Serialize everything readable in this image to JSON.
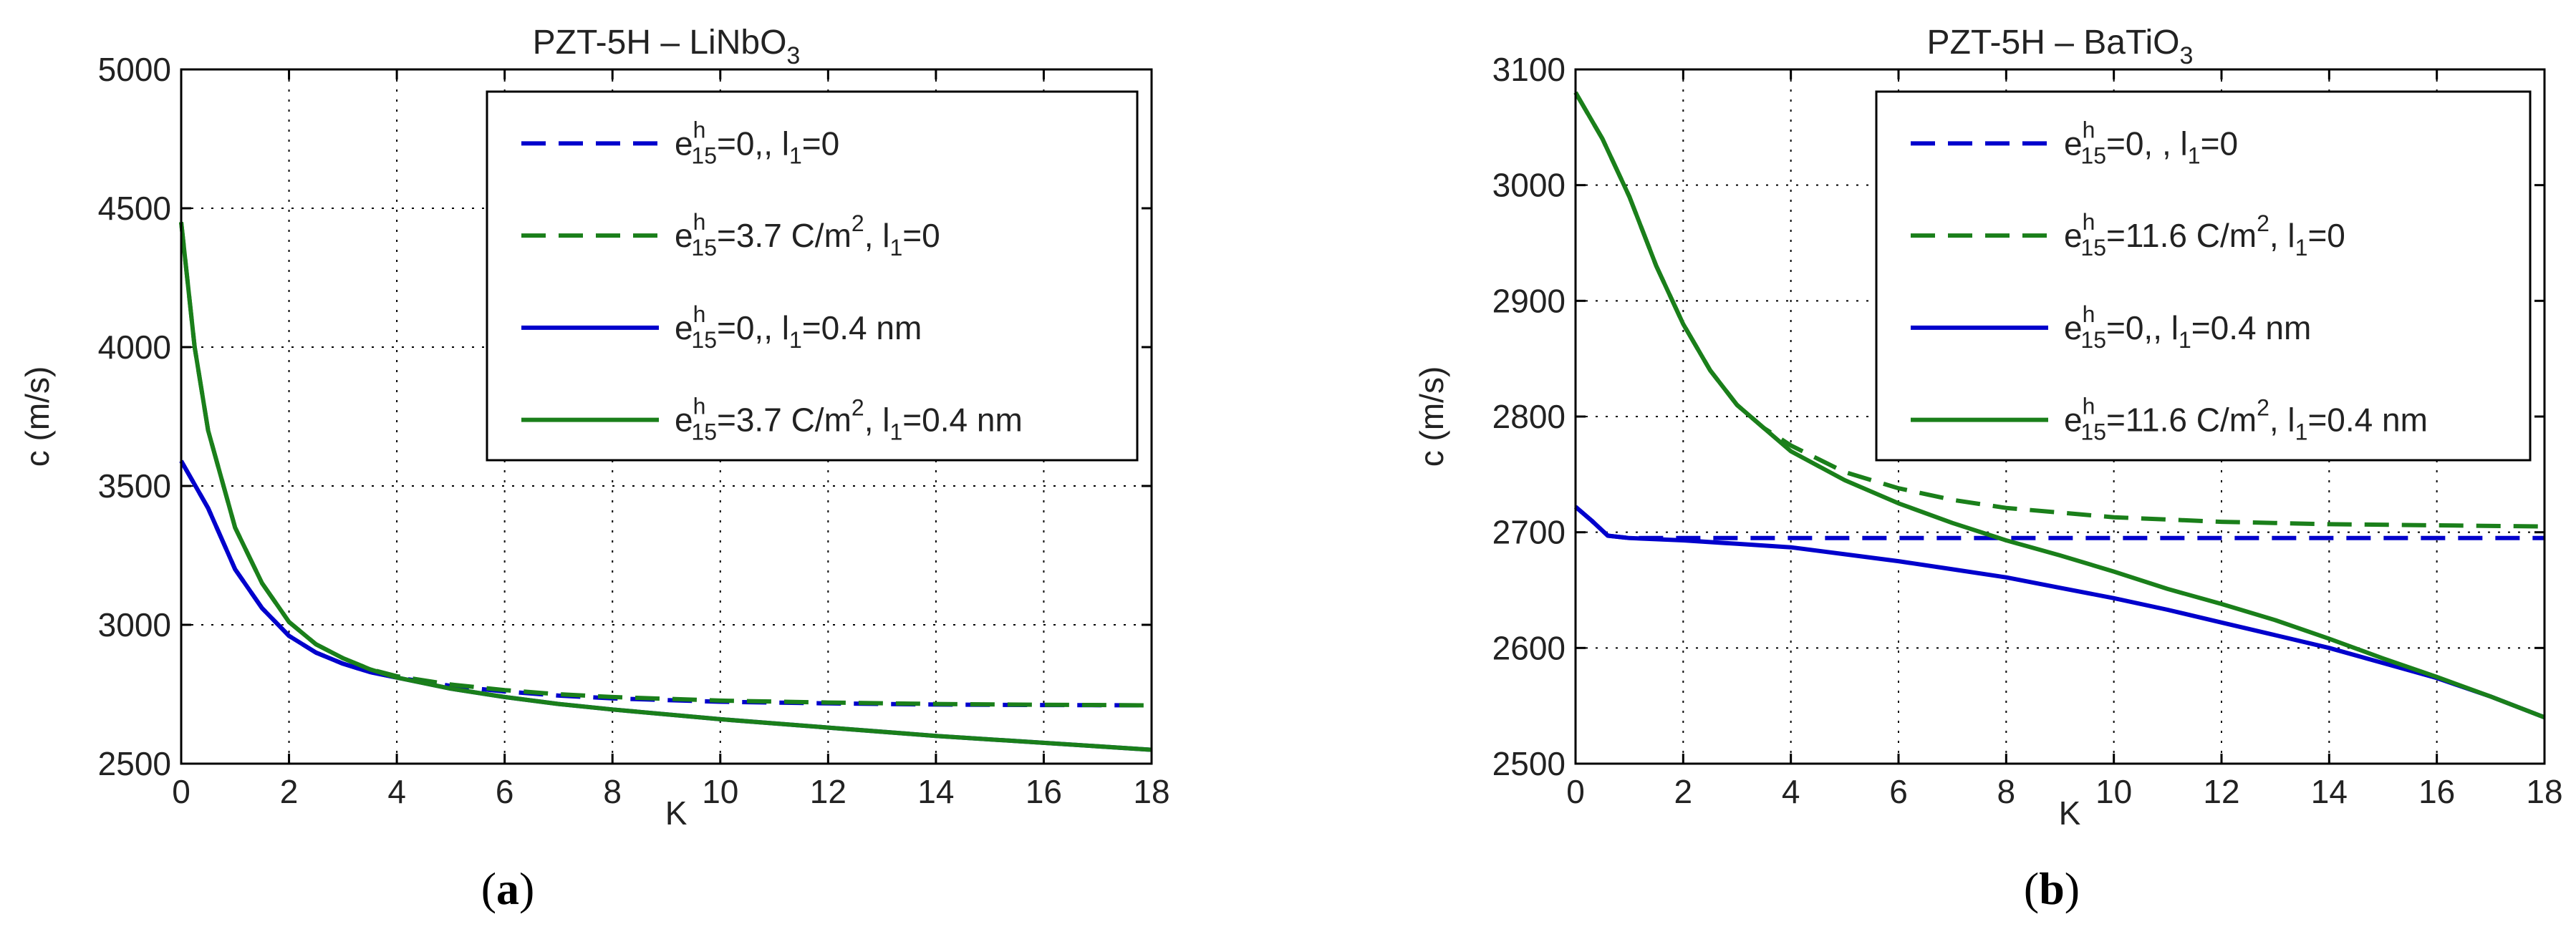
{
  "chart_data": [
    {
      "panel_label": "a",
      "type": "line",
      "title": "PZT-5H – LiNbO",
      "title_sub": "3",
      "xlabel": "K",
      "ylabel": "c  (m/s)",
      "xlim": [
        0,
        18
      ],
      "ylim": [
        2500,
        5000
      ],
      "xticks": [
        0,
        2,
        4,
        6,
        8,
        10,
        12,
        14,
        16,
        18
      ],
      "yticks": [
        2500,
        3000,
        3500,
        4000,
        4500,
        5000
      ],
      "grid": true,
      "legend_position": "top-right",
      "series": [
        {
          "name": "e15h=0, l1=0",
          "legend": {
            "e_val": "=0,",
            "e_unit": "",
            "l_val": "=0",
            "l_unit": ""
          },
          "color": "#0000cc",
          "style": "dashed",
          "x": [
            0,
            0.5,
            1,
            1.5,
            2,
            2.5,
            3,
            3.5,
            4,
            5,
            6,
            7,
            8,
            10,
            12,
            14,
            16,
            18
          ],
          "y": [
            3590,
            3420,
            3200,
            3060,
            2960,
            2900,
            2860,
            2830,
            2810,
            2780,
            2760,
            2745,
            2735,
            2723,
            2717,
            2713,
            2711,
            2710
          ]
        },
        {
          "name": "e15h=3.7 C/m2, l1=0",
          "legend": {
            "e_val": "=3.7  C/m",
            "e_unit": "2",
            "l_val": "=0",
            "l_unit": ""
          },
          "color": "#1a7f1a",
          "style": "dashed",
          "x": [
            0,
            0.25,
            0.5,
            1,
            1.5,
            2,
            2.5,
            3,
            3.5,
            4,
            5,
            6,
            7,
            8,
            10,
            12,
            14,
            16,
            18
          ],
          "y": [
            4450,
            4000,
            3700,
            3350,
            3150,
            3010,
            2930,
            2880,
            2840,
            2815,
            2785,
            2765,
            2750,
            2740,
            2727,
            2720,
            2715,
            2712,
            2710
          ]
        },
        {
          "name": "e15h=0, l1=0.4 nm",
          "legend": {
            "e_val": "=0,",
            "e_unit": "",
            "l_val": "=0.4 nm",
            "l_unit": ""
          },
          "color": "#0000cc",
          "style": "solid",
          "x": [
            0,
            0.5,
            1,
            1.5,
            2,
            2.5,
            3,
            3.5,
            4,
            5,
            6,
            7,
            8,
            10,
            12,
            14,
            16,
            18
          ],
          "y": [
            3590,
            3420,
            3200,
            3060,
            2960,
            2900,
            2860,
            2830,
            2810,
            2770,
            2740,
            2715,
            2695,
            2660,
            2630,
            2600,
            2575,
            2550
          ]
        },
        {
          "name": "e15h=3.7 C/m2, l1=0.4 nm",
          "legend": {
            "e_val": "=3.7 C/m",
            "e_unit": "2",
            "l_val": "=0.4 nm",
            "l_unit": ""
          },
          "color": "#1a7f1a",
          "style": "solid",
          "x": [
            0,
            0.25,
            0.5,
            1,
            1.5,
            2,
            2.5,
            3,
            3.5,
            4,
            5,
            6,
            7,
            8,
            10,
            12,
            14,
            16,
            18
          ],
          "y": [
            4450,
            4000,
            3700,
            3350,
            3150,
            3010,
            2930,
            2880,
            2840,
            2810,
            2770,
            2740,
            2715,
            2695,
            2660,
            2630,
            2600,
            2575,
            2550
          ]
        }
      ]
    },
    {
      "panel_label": "b",
      "type": "line",
      "title": "PZT-5H – BaTiO",
      "title_sub": "3",
      "xlabel": "K",
      "ylabel": "c  (m/s)",
      "xlim": [
        0,
        18
      ],
      "ylim": [
        2500,
        3100
      ],
      "xticks": [
        0,
        2,
        4,
        6,
        8,
        10,
        12,
        14,
        16,
        18
      ],
      "yticks": [
        2500,
        2600,
        2700,
        2800,
        2900,
        3000,
        3100
      ],
      "grid": true,
      "legend_position": "top-right",
      "series": [
        {
          "name": "e15h=0, l1=0",
          "legend": {
            "e_val": "=0, ",
            "e_unit": "",
            "l_val": "=0",
            "l_unit": ""
          },
          "color": "#0000cc",
          "style": "dashed",
          "x": [
            0,
            0.3,
            0.6,
            1,
            2,
            4,
            6,
            8,
            10,
            12,
            14,
            16,
            18
          ],
          "y": [
            2722,
            2710,
            2697,
            2695,
            2695,
            2695,
            2695,
            2695,
            2695,
            2695,
            2695,
            2695,
            2695
          ]
        },
        {
          "name": "e15h=11.6 C/m2, l1=0",
          "legend": {
            "e_val": "=11.6 C/m",
            "e_unit": "2",
            "l_val": "=0",
            "l_unit": ""
          },
          "color": "#1a7f1a",
          "style": "dashed",
          "x": [
            0,
            0.5,
            1,
            1.5,
            2,
            2.5,
            3,
            3.5,
            4,
            5,
            6,
            7,
            8,
            10,
            12,
            14,
            16,
            18
          ],
          "y": [
            3080,
            3040,
            2990,
            2930,
            2880,
            2840,
            2810,
            2790,
            2775,
            2752,
            2738,
            2728,
            2721,
            2713,
            2709,
            2707,
            2706,
            2705
          ]
        },
        {
          "name": "e15h=0, l1=0.4 nm",
          "legend": {
            "e_val": "=0,",
            "e_unit": "",
            "l_val": "=0.4 nm",
            "l_unit": ""
          },
          "color": "#0000cc",
          "style": "solid",
          "x": [
            0,
            0.3,
            0.6,
            1,
            2,
            3,
            4,
            5,
            6,
            7,
            8,
            9,
            10,
            11,
            12,
            13,
            14,
            15,
            16,
            17,
            18
          ],
          "y": [
            2722,
            2710,
            2697,
            2695,
            2693,
            2690,
            2687,
            2681,
            2675,
            2668,
            2661,
            2652,
            2643,
            2633,
            2622,
            2611,
            2600,
            2587,
            2574,
            2558,
            2540
          ]
        },
        {
          "name": "e15h=11.6 C/m2, l1=0.4 nm",
          "legend": {
            "e_val": "=11.6 C/m",
            "e_unit": "2",
            "l_val": "=0.4 nm",
            "l_unit": ""
          },
          "color": "#1a7f1a",
          "style": "solid",
          "x": [
            0,
            0.5,
            1,
            1.5,
            2,
            2.5,
            3,
            3.5,
            4,
            5,
            6,
            7,
            8,
            9,
            10,
            11,
            12,
            13,
            14,
            15,
            16,
            17,
            18
          ],
          "y": [
            3080,
            3040,
            2990,
            2930,
            2880,
            2840,
            2810,
            2790,
            2770,
            2745,
            2725,
            2708,
            2693,
            2680,
            2666,
            2651,
            2638,
            2624,
            2608,
            2591,
            2575,
            2558,
            2540
          ]
        }
      ]
    }
  ],
  "captions": [
    {
      "open": "(",
      "label": "a",
      "close": ")"
    },
    {
      "open": "(",
      "label": "b",
      "close": ")"
    }
  ]
}
